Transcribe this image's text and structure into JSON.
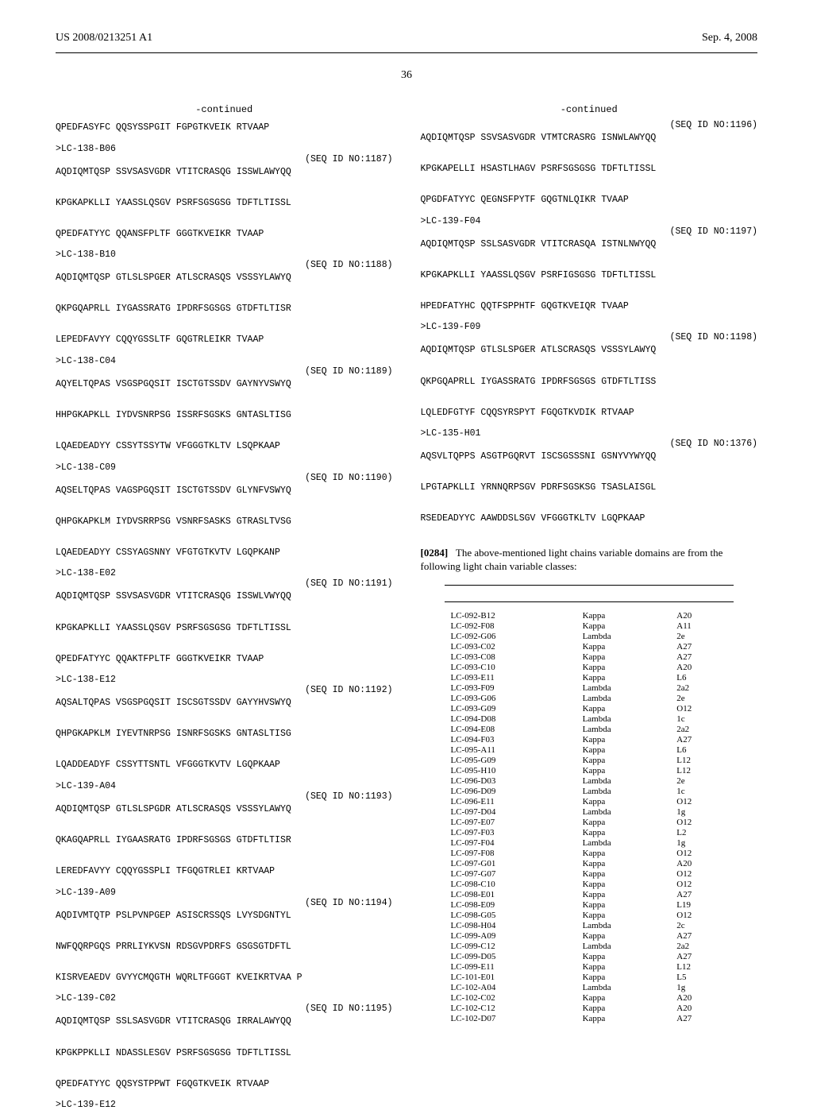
{
  "header": {
    "pub_number": "US 2008/0213251 A1",
    "pub_date": "Sep. 4, 2008"
  },
  "page_number": "36",
  "left_column": {
    "continued_label": "-continued",
    "blocks": [
      {
        "seq": "QPEDFASYFC QQSYSSPGIT FGPGTKVEIK RTVAAP"
      },
      {
        "header": ">LC-138-B06",
        "seqid": "(SEQ ID NO:1187)",
        "seq": "AQDIQMTQSP SSVSASVGDR VTITCRASQG ISSWLAWYQQ\n\nKPGKAPKLLI YAASSLQSGV PSRFSGSGSG TDFTLTISSL\n\nQPEDFATYYC QQANSFPLTF GGGTKVEIKR TVAAP"
      },
      {
        "header": ">LC-138-B10",
        "seqid": "(SEQ ID NO:1188)",
        "seq": "AQDIQMTQSP GTLSLSPGER ATLSCRASQS VSSSYLAWYQ\n\nQKPGQAPRLL IYGASSRATG IPDRFSGSGS GTDFTLTISR\n\nLEPEDFAVYY CQQYGSSLTF GQGTRLEIKR TVAAP"
      },
      {
        "header": ">LC-138-C04",
        "seqid": "(SEQ ID NO:1189)",
        "seq": "AQYELTQPAS VSGSPGQSIT ISCTGTSSDV GAYNYVSWYQ\n\nHHPGKAPKLL IYDVSNRPSG ISSRFSGSKS GNTASLTISG\n\nLQAEDEADYY CSSYTSSYTW VFGGGTKLTV LSQPKAAP"
      },
      {
        "header": ">LC-138-C09",
        "seqid": "(SEQ ID NO:1190)",
        "seq": "AQSELTQPAS VAGSPGQSIT ISCTGTSSDV GLYNFVSWYQ\n\nQHPGKAPKLM IYDVSRRPSG VSNRFSASKS GTRASLTVSG\n\nLQAEDEADYY CSSYAGSNNY VFGTGTKVTV LGQPKANP"
      },
      {
        "header": ">LC-138-E02",
        "seqid": "(SEQ ID NO:1191)",
        "seq": "AQDIQMTQSP SSVSASVGDR VTITCRASQG ISSWLVWYQQ\n\nKPGKAPKLLI YAASSLQSGV PSRFSGSGSG TDFTLTISSL\n\nQPEDFATYYC QQAKTFPLTF GGGTKVEIKR TVAAP"
      },
      {
        "header": ">LC-138-E12",
        "seqid": "(SEQ ID NO:1192)",
        "seq": "AQSALTQPAS VSGSPGQSIT ISCSGTSSDV GAYYHVSWYQ\n\nQHPGKAPKLM IYEVTNRPSG ISNRFSGSKS GNTASLTISG\n\nLQADDEADYF CSSYTTSNTL VFGGGTKVTV LGQPKAAP"
      },
      {
        "header": ">LC-139-A04",
        "seqid": "(SEQ ID NO:1193)",
        "seq": "AQDIQMTQSP GTLSLSPGDR ATLSCRASQS VSSSYLAWYQ\n\nQKAGQAPRLL IYGAASRATG IPDRFSGSGS GTDFTLTISR\n\nLEREDFAVYY CQQYGSSPLI TFGQGTRLEI KRTVAAP"
      },
      {
        "header": ">LC-139-A09",
        "seqid": "(SEQ ID NO:1194)",
        "seq": "AQDIVMTQTP PSLPVNPGEP ASISCRSSQS LVYSDGNTYL\n\nNWFQQRPGQS PRRLIYKVSN RDSGVPDRFS GSGSGTDFTL\n\nKISRVEAEDV GVYYCMQGTH WQRLTFGGGT KVEIKRTVAA P"
      },
      {
        "header": ">LC-139-C02",
        "seqid": "(SEQ ID NO:1195)",
        "seq": "AQDIQMTQSP SSLSASVGDR VTITCRASQG IRRALAWYQQ\n\nKPGKPPKLLI NDASSLESGV PSRFSGSGSG TDFTLTISSL\n\nQPEDFATYYC QQSYSTPPWT FGQGTKVEIK RTVAAP"
      },
      {
        "header": ">LC-139-E12"
      }
    ]
  },
  "right_column": {
    "continued_label": "-continued",
    "blocks": [
      {
        "seqid": "(SEQ ID NO:1196)",
        "seq": "AQDIQMTQSP SSVSASVGDR VTMTCRASRG ISNWLAWYQQ\n\nKPGKAPELLI HSASTLHAGV PSRFSGSGSG TDFTLTISSL\n\nQPGDFATYYC QEGNSFPYTF GQGTNLQIKR TVAAP"
      },
      {
        "header": ">LC-139-F04",
        "seqid": "(SEQ ID NO:1197)",
        "seq": "AQDIQMTQSP SSLSASVGDR VTITCRASQA ISTNLNWYQQ\n\nKPGKAPKLLI YAASSLQSGV PSRFIGSGSG TDFTLTISSL\n\nHPEDFATYHC QQTFSPPHTF GQGTKVEIQR TVAAP"
      },
      {
        "header": ">LC-139-F09",
        "seqid": "(SEQ ID NO:1198)",
        "seq": "AQDIQMTQSP GTLSLSPGER ATLSCRASQS VSSSYLAWYQ\n\nQKPGQAPRLL IYGASSRATG IPDRFSGSGS GTDFTLTISS\n\nLQLEDFGTYF CQQSYRSPYT FGQGTKVDIK RTVAAP"
      },
      {
        "header": ">LC-135-H01",
        "seqid": "(SEQ ID NO:1376)",
        "seq": "AQSVLTQPPS ASGTPGQRVT ISCSGSSSNI GSNYVYWYQQ\n\nLPGTAPKLLI YRNNQRPSGV PDRFSGSKSG TSASLAISGL\n\nRSEDEADYYC AAWDDSLSGV VFGGGTKLTV LGQPKAAP"
      }
    ],
    "paragraph": {
      "num": "[0284]",
      "text": "The above-mentioned light chains variable domains are from the following light chain variable classes:"
    },
    "table_rows": [
      [
        "LC-092-B12",
        "Kappa",
        "A20"
      ],
      [
        "LC-092-F08",
        "Kappa",
        "A11"
      ],
      [
        "LC-092-G06",
        "Lambda",
        "2e"
      ],
      [
        "LC-093-C02",
        "Kappa",
        "A27"
      ],
      [
        "LC-093-C08",
        "Kappa",
        "A27"
      ],
      [
        "LC-093-C10",
        "Kappa",
        "A20"
      ],
      [
        "LC-093-E11",
        "Kappa",
        "L6"
      ],
      [
        "LC-093-F09",
        "Lambda",
        "2a2"
      ],
      [
        "LC-093-G06",
        "Lambda",
        "2e"
      ],
      [
        "LC-093-G09",
        "Kappa",
        "O12"
      ],
      [
        "LC-094-D08",
        "Lambda",
        "1c"
      ],
      [
        "LC-094-E08",
        "Lambda",
        "2a2"
      ],
      [
        "LC-094-F03",
        "Kappa",
        "A27"
      ],
      [
        "LC-095-A11",
        "Kappa",
        "L6"
      ],
      [
        "LC-095-G09",
        "Kappa",
        "L12"
      ],
      [
        "LC-095-H10",
        "Kappa",
        "L12"
      ],
      [
        "LC-096-D03",
        "Lambda",
        "2e"
      ],
      [
        "LC-096-D09",
        "Lambda",
        "1c"
      ],
      [
        "LC-096-E11",
        "Kappa",
        "O12"
      ],
      [
        "LC-097-D04",
        "Lambda",
        "1g"
      ],
      [
        "LC-097-E07",
        "Kappa",
        "O12"
      ],
      [
        "LC-097-F03",
        "Kappa",
        "L2"
      ],
      [
        "LC-097-F04",
        "Lambda",
        "1g"
      ],
      [
        "LC-097-F08",
        "Kappa",
        "O12"
      ],
      [
        "LC-097-G01",
        "Kappa",
        "A20"
      ],
      [
        "LC-097-G07",
        "Kappa",
        "O12"
      ],
      [
        "LC-098-C10",
        "Kappa",
        "O12"
      ],
      [
        "LC-098-E01",
        "Kappa",
        "A27"
      ],
      [
        "LC-098-E09",
        "Kappa",
        "L19"
      ],
      [
        "LC-098-G05",
        "Kappa",
        "O12"
      ],
      [
        "LC-098-H04",
        "Lambda",
        "2c"
      ],
      [
        "LC-099-A09",
        "Kappa",
        "A27"
      ],
      [
        "LC-099-C12",
        "Lambda",
        "2a2"
      ],
      [
        "LC-099-D05",
        "Kappa",
        "A27"
      ],
      [
        "LC-099-E11",
        "Kappa",
        "L12"
      ],
      [
        "LC-101-E01",
        "Kappa",
        "L5"
      ],
      [
        "LC-102-A04",
        "Lambda",
        "1g"
      ],
      [
        "LC-102-C02",
        "Kappa",
        "A20"
      ],
      [
        "LC-102-C12",
        "Kappa",
        "A20"
      ],
      [
        "LC-102-D07",
        "Kappa",
        "A27"
      ]
    ]
  }
}
